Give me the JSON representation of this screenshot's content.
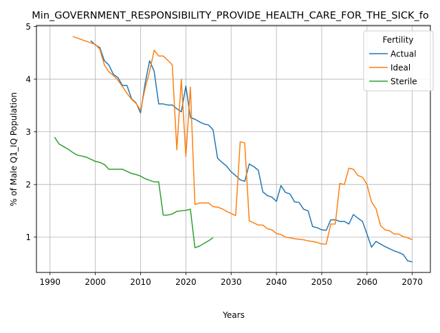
{
  "chart_data": {
    "type": "line",
    "title": "Min_GOVERNMENT_RESPONSIBILITY_PROVIDE_HEALTH_CARE_FOR_THE_SICK_fo",
    "xlabel": "Years",
    "ylabel": "% of Male Q1_IQ Population",
    "xlim": [
      1987,
      2074
    ],
    "ylim": [
      0.33,
      5.02
    ],
    "xticks": [
      1990,
      2000,
      2010,
      2020,
      2030,
      2040,
      2050,
      2060,
      2070
    ],
    "yticks": [
      1,
      2,
      3,
      4,
      5
    ],
    "grid": true,
    "legend": {
      "title": "Fertility",
      "placement": "top-right"
    },
    "series": [
      {
        "name": "Actual",
        "color": "#1f77b4",
        "points": [
          [
            1999,
            4.73
          ],
          [
            2000,
            4.65
          ],
          [
            2001,
            4.6
          ],
          [
            2002,
            4.35
          ],
          [
            2003,
            4.27
          ],
          [
            2004,
            4.09
          ],
          [
            2005,
            4.03
          ],
          [
            2006,
            3.88
          ],
          [
            2007,
            3.88
          ],
          [
            2008,
            3.63
          ],
          [
            2009,
            3.55
          ],
          [
            2010,
            3.36
          ],
          [
            2011,
            3.92
          ],
          [
            2012,
            4.35
          ],
          [
            2013,
            4.15
          ],
          [
            2014,
            3.53
          ],
          [
            2015,
            3.53
          ],
          [
            2016,
            3.51
          ],
          [
            2017,
            3.51
          ],
          [
            2018,
            3.44
          ],
          [
            2019,
            3.38
          ],
          [
            2020,
            3.87
          ],
          [
            2021,
            3.27
          ],
          [
            2022,
            3.24
          ],
          [
            2023,
            3.19
          ],
          [
            2024,
            3.15
          ],
          [
            2025,
            3.13
          ],
          [
            2026,
            3.04
          ],
          [
            2027,
            2.5
          ],
          [
            2028,
            2.42
          ],
          [
            2029,
            2.35
          ],
          [
            2030,
            2.24
          ],
          [
            2031,
            2.17
          ],
          [
            2032,
            2.09
          ],
          [
            2033,
            2.06
          ],
          [
            2034,
            2.39
          ],
          [
            2035,
            2.34
          ],
          [
            2036,
            2.27
          ],
          [
            2037,
            1.86
          ],
          [
            2038,
            1.79
          ],
          [
            2039,
            1.76
          ],
          [
            2040,
            1.68
          ],
          [
            2041,
            1.98
          ],
          [
            2042,
            1.85
          ],
          [
            2043,
            1.82
          ],
          [
            2044,
            1.67
          ],
          [
            2045,
            1.66
          ],
          [
            2046,
            1.53
          ],
          [
            2047,
            1.5
          ],
          [
            2048,
            1.2
          ],
          [
            2049,
            1.18
          ],
          [
            2050,
            1.14
          ],
          [
            2051,
            1.13
          ],
          [
            2052,
            1.33
          ],
          [
            2053,
            1.33
          ],
          [
            2054,
            1.3
          ],
          [
            2055,
            1.3
          ],
          [
            2056,
            1.25
          ],
          [
            2057,
            1.43
          ],
          [
            2058,
            1.36
          ],
          [
            2059,
            1.3
          ],
          [
            2060,
            1.06
          ],
          [
            2061,
            0.81
          ],
          [
            2062,
            0.92
          ],
          [
            2063,
            0.87
          ],
          [
            2064,
            0.82
          ],
          [
            2065,
            0.78
          ],
          [
            2066,
            0.74
          ],
          [
            2067,
            0.71
          ],
          [
            2068,
            0.67
          ],
          [
            2069,
            0.55
          ],
          [
            2070,
            0.53
          ]
        ]
      },
      {
        "name": "Ideal",
        "color": "#ff7f0e",
        "points": [
          [
            1995,
            4.81
          ],
          [
            2000,
            4.66
          ],
          [
            2001,
            4.57
          ],
          [
            2002,
            4.27
          ],
          [
            2003,
            4.14
          ],
          [
            2004,
            4.07
          ],
          [
            2005,
            3.98
          ],
          [
            2006,
            3.86
          ],
          [
            2007,
            3.73
          ],
          [
            2008,
            3.62
          ],
          [
            2009,
            3.54
          ],
          [
            2010,
            3.41
          ],
          [
            2011,
            3.83
          ],
          [
            2012,
            4.15
          ],
          [
            2013,
            4.55
          ],
          [
            2014,
            4.44
          ],
          [
            2015,
            4.44
          ],
          [
            2016,
            4.36
          ],
          [
            2017,
            4.27
          ],
          [
            2018,
            2.66
          ],
          [
            2019,
            4.0
          ],
          [
            2020,
            2.53
          ],
          [
            2021,
            3.85
          ],
          [
            2022,
            1.62
          ],
          [
            2023,
            1.65
          ],
          [
            2024,
            1.65
          ],
          [
            2025,
            1.65
          ],
          [
            2026,
            1.58
          ],
          [
            2027,
            1.57
          ],
          [
            2028,
            1.54
          ],
          [
            2029,
            1.49
          ],
          [
            2030,
            1.45
          ],
          [
            2031,
            1.41
          ],
          [
            2032,
            2.81
          ],
          [
            2033,
            2.79
          ],
          [
            2034,
            1.31
          ],
          [
            2035,
            1.27
          ],
          [
            2036,
            1.23
          ],
          [
            2037,
            1.23
          ],
          [
            2038,
            1.16
          ],
          [
            2039,
            1.14
          ],
          [
            2040,
            1.07
          ],
          [
            2041,
            1.05
          ],
          [
            2042,
            1.0
          ],
          [
            2043,
            0.99
          ],
          [
            2044,
            0.97
          ],
          [
            2045,
            0.96
          ],
          [
            2046,
            0.95
          ],
          [
            2047,
            0.93
          ],
          [
            2048,
            0.92
          ],
          [
            2049,
            0.9
          ],
          [
            2050,
            0.87
          ],
          [
            2051,
            0.87
          ],
          [
            2052,
            1.25
          ],
          [
            2053,
            1.25
          ],
          [
            2054,
            2.02
          ],
          [
            2055,
            2.0
          ],
          [
            2056,
            2.31
          ],
          [
            2057,
            2.29
          ],
          [
            2058,
            2.17
          ],
          [
            2059,
            2.14
          ],
          [
            2060,
            2.0
          ],
          [
            2061,
            1.67
          ],
          [
            2062,
            1.54
          ],
          [
            2063,
            1.22
          ],
          [
            2064,
            1.14
          ],
          [
            2065,
            1.12
          ],
          [
            2066,
            1.06
          ],
          [
            2067,
            1.06
          ],
          [
            2068,
            1.01
          ],
          [
            2069,
            0.99
          ],
          [
            2070,
            0.95
          ]
        ]
      },
      {
        "name": "Sterile",
        "color": "#2ca02c",
        "points": [
          [
            1991,
            2.9
          ],
          [
            1992,
            2.77
          ],
          [
            1993,
            2.72
          ],
          [
            1994,
            2.67
          ],
          [
            1995,
            2.61
          ],
          [
            1996,
            2.56
          ],
          [
            1997,
            2.54
          ],
          [
            1998,
            2.52
          ],
          [
            1999,
            2.48
          ],
          [
            2000,
            2.44
          ],
          [
            2001,
            2.42
          ],
          [
            2002,
            2.38
          ],
          [
            2003,
            2.29
          ],
          [
            2004,
            2.29
          ],
          [
            2005,
            2.29
          ],
          [
            2006,
            2.29
          ],
          [
            2007,
            2.25
          ],
          [
            2008,
            2.21
          ],
          [
            2009,
            2.19
          ],
          [
            2010,
            2.16
          ],
          [
            2011,
            2.11
          ],
          [
            2012,
            2.08
          ],
          [
            2013,
            2.05
          ],
          [
            2014,
            2.05
          ],
          [
            2015,
            1.42
          ],
          [
            2016,
            1.42
          ],
          [
            2017,
            1.44
          ],
          [
            2018,
            1.49
          ],
          [
            2019,
            1.5
          ],
          [
            2020,
            1.51
          ],
          [
            2021,
            1.53
          ],
          [
            2022,
            0.8
          ],
          [
            2023,
            0.83
          ],
          [
            2024,
            0.88
          ],
          [
            2025,
            0.93
          ],
          [
            2026,
            0.99
          ]
        ]
      }
    ]
  }
}
